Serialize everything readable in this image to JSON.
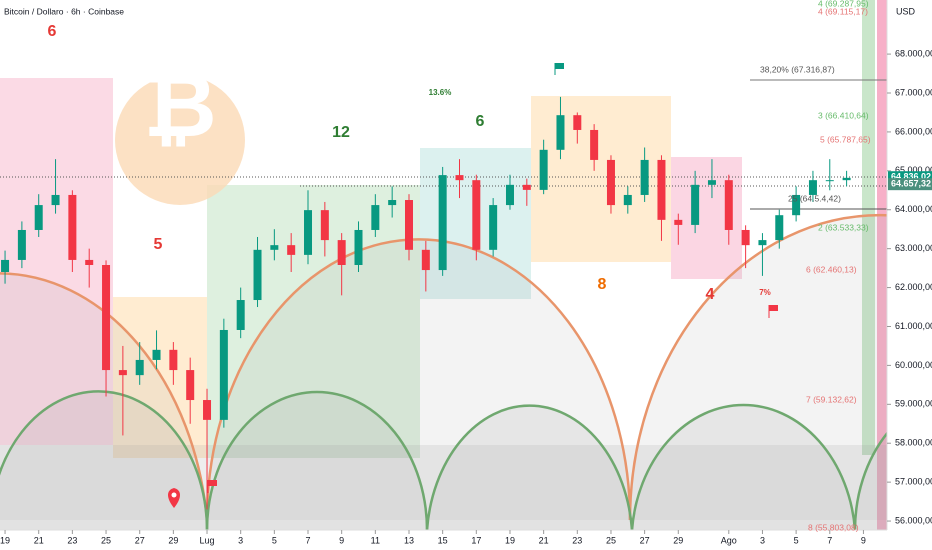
{
  "chart_data": {
    "type": "candlestick",
    "title": "Bitcoin / Dollaro · 6h · Coinbase",
    "currency": "USD",
    "up_color": "#089981",
    "down_color": "#f23645",
    "x": [
      0,
      1,
      2,
      3,
      4,
      5,
      6,
      7,
      8,
      9,
      10,
      11,
      12,
      13,
      14,
      15,
      16,
      17,
      18,
      19,
      20,
      21,
      22,
      23,
      24,
      25,
      26,
      27,
      28,
      29,
      30,
      31,
      32,
      33,
      34,
      35,
      36,
      37,
      38,
      39,
      40,
      41,
      42,
      43,
      44,
      45,
      46,
      47,
      48,
      49,
      50
    ],
    "open": [
      62400,
      62710,
      63480,
      64120,
      64380,
      62710,
      62580,
      59880,
      59750,
      60140,
      60400,
      59880,
      59110,
      58600,
      60910,
      61680,
      62970,
      63090,
      62840,
      63990,
      63220,
      62580,
      63480,
      64120,
      64250,
      62970,
      62450,
      64890,
      64760,
      62970,
      64120,
      64640,
      64510,
      65540,
      66430,
      66050,
      65280,
      64120,
      64380,
      65280,
      63740,
      63610,
      64640,
      64760,
      63480,
      63090,
      63220,
      63860,
      64380,
      64760,
      64760
    ],
    "high": [
      62950,
      63700,
      64400,
      65300,
      64500,
      63000,
      62700,
      60500,
      60600,
      60900,
      60600,
      60200,
      59400,
      61200,
      62000,
      63300,
      63500,
      63400,
      64500,
      64200,
      63400,
      63700,
      64400,
      64600,
      64400,
      63200,
      65100,
      65300,
      64900,
      64300,
      64900,
      64800,
      65800,
      66900,
      66500,
      66200,
      65400,
      64600,
      65600,
      65400,
      63900,
      65000,
      65300,
      64900,
      63600,
      63400,
      64000,
      64600,
      65000,
      65300,
      65000
    ],
    "low": [
      62100,
      62500,
      63300,
      63900,
      62400,
      62000,
      59200,
      58200,
      59500,
      59900,
      59500,
      58500,
      56300,
      58400,
      60700,
      61500,
      62700,
      62400,
      62600,
      62800,
      61800,
      62400,
      63300,
      63800,
      62700,
      61900,
      62300,
      64300,
      62700,
      62800,
      64000,
      64100,
      64400,
      65300,
      65700,
      65000,
      63900,
      63900,
      64200,
      63200,
      63100,
      63400,
      64300,
      63100,
      62500,
      62300,
      63000,
      63700,
      64200,
      64500,
      64600
    ],
    "close": [
      62710,
      63480,
      64120,
      64380,
      62710,
      62580,
      59880,
      59750,
      60140,
      60400,
      59880,
      59110,
      58600,
      60910,
      61680,
      62970,
      63090,
      62840,
      63990,
      63220,
      62580,
      63480,
      64120,
      64250,
      62970,
      62450,
      64890,
      64760,
      62970,
      64120,
      64640,
      64510,
      65540,
      66430,
      66050,
      65280,
      64120,
      64380,
      65280,
      63740,
      63610,
      64640,
      64760,
      63480,
      63090,
      63220,
      63860,
      64380,
      64760,
      64760,
      64820
    ],
    "xlim": [
      -0.3,
      52.4
    ],
    "ylim": [
      55770,
      69390
    ],
    "xticks": [
      {
        "value": 0,
        "label": "19"
      },
      {
        "value": 2,
        "label": "21"
      },
      {
        "value": 4,
        "label": "23"
      },
      {
        "value": 6,
        "label": "25"
      },
      {
        "value": 8,
        "label": "27"
      },
      {
        "value": 10,
        "label": "29"
      },
      {
        "value": 12,
        "label": "Lug"
      },
      {
        "value": 14,
        "label": "3"
      },
      {
        "value": 16,
        "label": "5"
      },
      {
        "value": 18,
        "label": "7"
      },
      {
        "value": 20,
        "label": "9"
      },
      {
        "value": 22,
        "label": "11"
      },
      {
        "value": 24,
        "label": "13"
      },
      {
        "value": 26,
        "label": "15"
      },
      {
        "value": 28,
        "label": "17"
      },
      {
        "value": 30,
        "label": "19"
      },
      {
        "value": 32,
        "label": "21"
      },
      {
        "value": 34,
        "label": "23"
      },
      {
        "value": 36,
        "label": "25"
      },
      {
        "value": 38,
        "label": "27"
      },
      {
        "value": 40,
        "label": "29"
      },
      {
        "value": 43,
        "label": "Ago"
      },
      {
        "value": 45,
        "label": "3"
      },
      {
        "value": 47,
        "label": "5"
      },
      {
        "value": 49,
        "label": "7"
      },
      {
        "value": 51,
        "label": "9"
      }
    ],
    "yticks": [
      {
        "value": 56000,
        "label": "56.000,00"
      },
      {
        "value": 57000,
        "label": "57.000,00"
      },
      {
        "value": 58000,
        "label": "58.000,00"
      },
      {
        "value": 59000,
        "label": "59.000,00"
      },
      {
        "value": 60000,
        "label": "60.000,00"
      },
      {
        "value": 61000,
        "label": "61.000,00"
      },
      {
        "value": 62000,
        "label": "62.000,00"
      },
      {
        "value": 63000,
        "label": "63.000,00"
      },
      {
        "value": 64000,
        "label": "64.000,00"
      },
      {
        "value": 65000,
        "label": "65.000,00"
      },
      {
        "value": 66000,
        "label": "66.000,00"
      },
      {
        "value": 67000,
        "label": "67.000,00"
      },
      {
        "value": 68000,
        "label": "68.000,00"
      }
    ],
    "price_labels": [
      {
        "value": 64836.02,
        "label": "64.836,02"
      },
      {
        "value": 64657.32,
        "label": "64.657,32"
      }
    ],
    "annotations": [
      "6",
      "5",
      "12",
      "13.6%",
      "6",
      "8",
      "4",
      "7%"
    ],
    "fib_labels": [
      "4 (69.287,95)",
      "4 (69.115,17)",
      "38,20% (67.316,87)",
      "3 (66.410,64)",
      "5 (65.787,65)",
      "25 (64.5.4,42)",
      "2 (63.533,33)",
      "6 (62.460,13)",
      "7 (59.132,62)",
      "8 (55.803,08)"
    ]
  }
}
